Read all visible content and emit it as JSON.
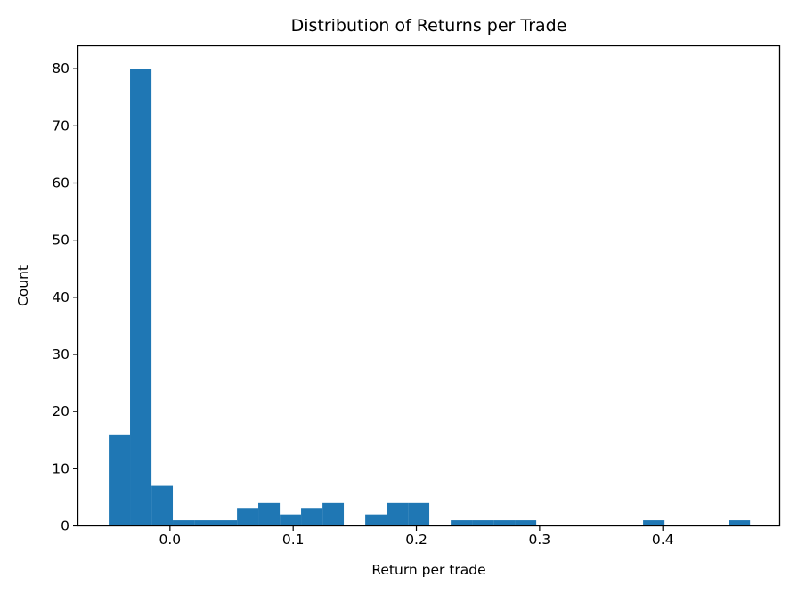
{
  "figure": {
    "title": "Distribution of Returns per Trade",
    "xlabel": "Return per trade",
    "ylabel": "Count"
  },
  "chart_data": {
    "type": "bar",
    "subtype": "histogram",
    "title": "Distribution of Returns per Trade",
    "xlabel": "Return per trade",
    "ylabel": "Count",
    "bar_color": "#1f77b4",
    "axis_color": "#000000",
    "background_color": "#ffffff",
    "grid": false,
    "legend": null,
    "bin_edges": [
      -0.0497,
      -0.0324,
      -0.015,
      0.0023,
      0.0197,
      0.037,
      0.0544,
      0.0717,
      0.0891,
      0.1064,
      0.1238,
      0.1411,
      0.1585,
      0.1758,
      0.1932,
      0.2105,
      0.2279,
      0.2452,
      0.2626,
      0.2799,
      0.2973,
      0.3146,
      0.332,
      0.3493,
      0.3667,
      0.384,
      0.4014,
      0.4187,
      0.4361,
      0.4534,
      0.4708
    ],
    "counts": [
      16,
      80,
      7,
      1,
      1,
      1,
      3,
      4,
      2,
      3,
      4,
      0,
      2,
      4,
      4,
      0,
      1,
      1,
      1,
      1,
      0,
      0,
      0,
      0,
      0,
      1,
      0,
      0,
      0,
      1
    ],
    "x_ticks": [
      0.0,
      0.1,
      0.2,
      0.3,
      0.4
    ],
    "x_tick_labels": [
      "0.0",
      "0.1",
      "0.2",
      "0.3",
      "0.4"
    ],
    "y_ticks": [
      0,
      10,
      20,
      30,
      40,
      50,
      60,
      70,
      80
    ],
    "y_tick_labels": [
      "0",
      "10",
      "20",
      "30",
      "40",
      "50",
      "60",
      "70",
      "80"
    ],
    "xlim": [
      -0.0747,
      0.4949
    ],
    "ylim": [
      0,
      84
    ]
  }
}
